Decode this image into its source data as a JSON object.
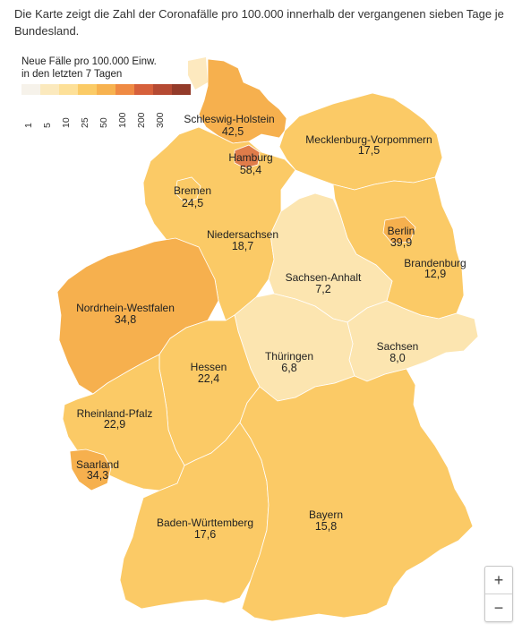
{
  "intro": "Die Karte zeigt die Zahl der Coronafälle pro 100.000 innerhalb der vergangenen sieben Tage je Bundesland.",
  "legend": {
    "title_line1": "Neue Fälle pro 100.000 Einw.",
    "title_line2": "in den letzten 7 Tagen",
    "bins": [
      {
        "label": "1",
        "color": "#f6f2ea"
      },
      {
        "label": "5",
        "color": "#fbe9bd"
      },
      {
        "label": "10",
        "color": "#fde098"
      },
      {
        "label": "25",
        "color": "#fbcb66"
      },
      {
        "label": "50",
        "color": "#f7b24f"
      },
      {
        "label": "100",
        "color": "#ef8a43"
      },
      {
        "label": "200",
        "color": "#d6603b"
      },
      {
        "label": "300",
        "color": "#b54a33"
      },
      {
        "label": "",
        "color": "#933b2a"
      }
    ]
  },
  "states": [
    {
      "name": "Schleswig-Holstein",
      "value": "42,5",
      "color": "#f6b04e"
    },
    {
      "name": "Hamburg",
      "value": "58,4",
      "color": "#e07c4a"
    },
    {
      "name": "Mecklenburg-Vorpommern",
      "value": "17,5",
      "color": "#fbca66"
    },
    {
      "name": "Bremen",
      "value": "24,5",
      "color": "#fbca66"
    },
    {
      "name": "Berlin",
      "value": "39,9",
      "color": "#f6b04e"
    },
    {
      "name": "Niedersachsen",
      "value": "18,7",
      "color": "#fbca66"
    },
    {
      "name": "Brandenburg",
      "value": "12,9",
      "color": "#fbca66"
    },
    {
      "name": "Sachsen-Anhalt",
      "value": "7,2",
      "color": "#fce5b0"
    },
    {
      "name": "Nordrhein-Westfalen",
      "value": "34,8",
      "color": "#f6b04e"
    },
    {
      "name": "Sachsen",
      "value": "8,0",
      "color": "#fce5b0"
    },
    {
      "name": "Thüringen",
      "value": "6,8",
      "color": "#fce5b0"
    },
    {
      "name": "Hessen",
      "value": "22,4",
      "color": "#fbca66"
    },
    {
      "name": "Rheinland-Pfalz",
      "value": "22,9",
      "color": "#fbca66"
    },
    {
      "name": "Saarland",
      "value": "34,3",
      "color": "#f6b04e"
    },
    {
      "name": "Baden-Württemberg",
      "value": "17,6",
      "color": "#fbca66"
    },
    {
      "name": "Bayern",
      "value": "15,8",
      "color": "#fbca66"
    }
  ],
  "zoom": {
    "in_label": "+",
    "out_label": "−"
  }
}
